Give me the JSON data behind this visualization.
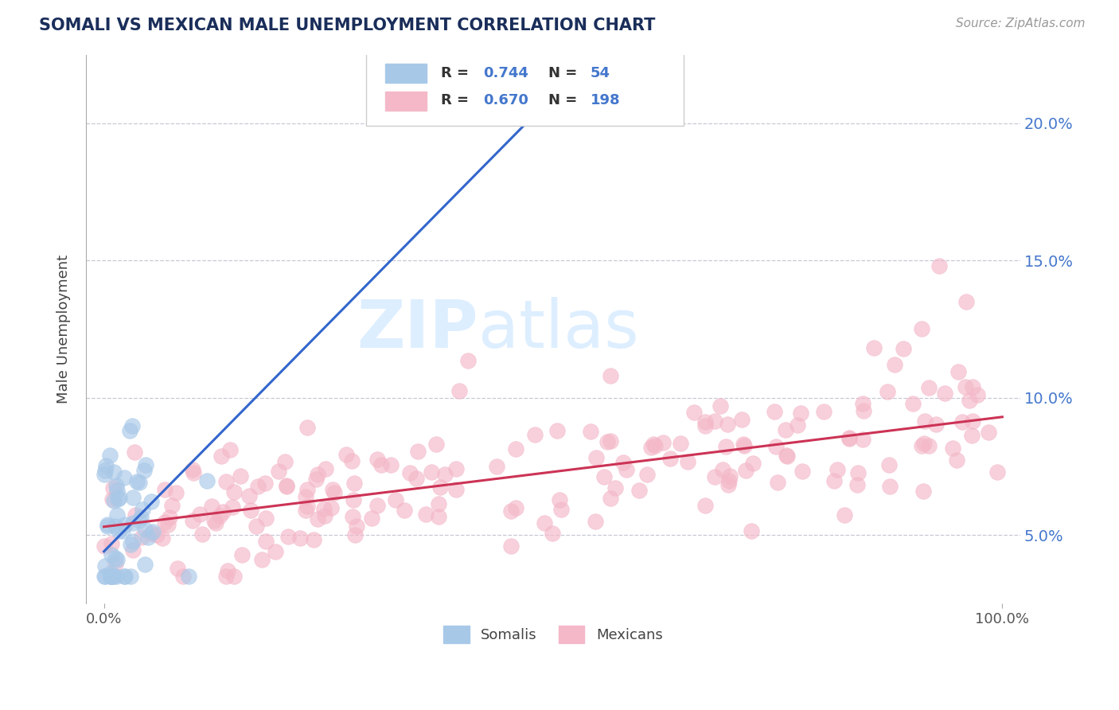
{
  "title": "SOMALI VS MEXICAN MALE UNEMPLOYMENT CORRELATION CHART",
  "source_text": "Source: ZipAtlas.com",
  "ylabel": "Male Unemployment",
  "somali_R": 0.744,
  "somali_N": 54,
  "mexican_R": 0.67,
  "mexican_N": 198,
  "somali_color": "#a8c8e8",
  "mexican_color": "#f4b8c8",
  "somali_line_color": "#3366cc",
  "mexican_line_color": "#cc3355",
  "legend_somali_label": "Somalis",
  "legend_mexican_label": "Mexicans",
  "watermark_zip": "ZIP",
  "watermark_atlas": "atlas",
  "watermark_color": "#ddeeff",
  "title_color": "#1a2e5a",
  "background_color": "#ffffff",
  "grid_color": "#c8c8d8",
  "tick_label_color": "#4477cc",
  "legend_text_color": "#4477cc",
  "legend_label_color": "#444444",
  "xlim": [
    -0.02,
    1.02
  ],
  "ylim": [
    0.025,
    0.225
  ],
  "ytick_vals": [
    0.05,
    0.1,
    0.15,
    0.2
  ],
  "ytick_labels": [
    "5.0%",
    "10.0%",
    "15.0%",
    "20.0%"
  ],
  "somali_line_x": [
    0.0,
    0.47
  ],
  "somali_line_y": [
    0.044,
    0.2
  ],
  "mexican_line_x": [
    0.0,
    1.0
  ],
  "mexican_line_y": [
    0.053,
    0.093
  ]
}
